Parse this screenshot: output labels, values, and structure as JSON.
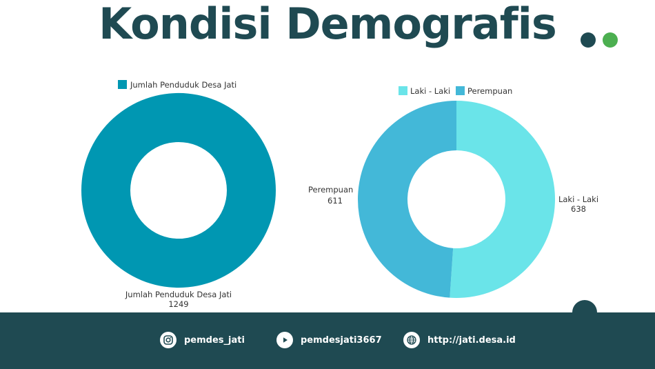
{
  "page": {
    "title": "Kondisi Demografis"
  },
  "colors": {
    "primary_dark": "#1f4a52",
    "accent_green": "#4caf50",
    "total_series": "#0097b2",
    "male_series": "#6ae4e9",
    "female_series": "#43b8d8"
  },
  "chart_data": [
    {
      "type": "pie",
      "donut": true,
      "legend": [
        "Jumlah Penduduk Desa Jati"
      ],
      "legend_position": "top",
      "slices": [
        {
          "label": "Jumlah Penduduk Desa Jati",
          "value": 1249,
          "color": "#0097b2"
        }
      ]
    },
    {
      "type": "pie",
      "donut": true,
      "legend": [
        "Laki - Laki",
        "Perempuan"
      ],
      "legend_position": "top",
      "slices": [
        {
          "label": "Laki - Laki",
          "value": 638,
          "color": "#6ae4e9"
        },
        {
          "label": "Perempuan",
          "value": 611,
          "color": "#43b8d8"
        }
      ]
    }
  ],
  "footer": {
    "instagram": {
      "icon": "instagram-icon",
      "label": "pemdes_jati"
    },
    "youtube": {
      "icon": "youtube-play-icon",
      "label": "pemdesjati3667"
    },
    "website": {
      "icon": "globe-icon",
      "label": "http://jati.desa.id"
    }
  }
}
